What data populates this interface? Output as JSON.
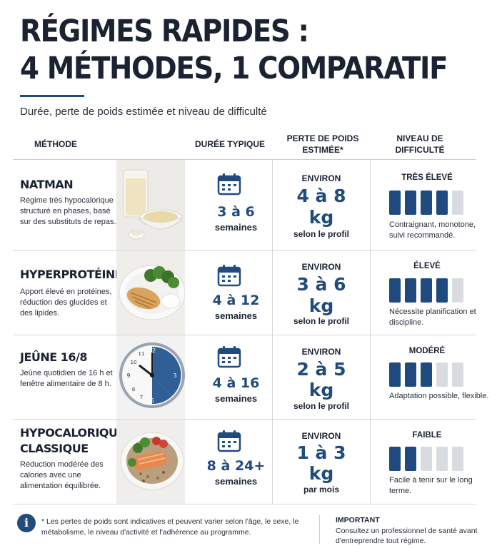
{
  "title": {
    "line1": "RÉGIMES RAPIDES :",
    "line2": "4 MÉTHODES, 1 COMPARATIF"
  },
  "subtitle": "Durée, perte de poids estimée et niveau de difficulté",
  "headers": {
    "methode": "MÉTHODE",
    "duree": "DURÉE TYPIQUE",
    "perte": "PERTE DE POIDS ESTIMÉE*",
    "niveau": "NIVEAU DE DIFFICULTÉ"
  },
  "rows": [
    {
      "name": "NATMAN",
      "desc": "Régime très hypocalorique structuré en phases, basé sur des substituts de repas.",
      "photo": "shake-and-soup-photo",
      "duration": "3 à 6",
      "duration_unit": "semaines",
      "loss_prefix": "ENVIRON",
      "loss_range": "4 à 8",
      "loss_unit": "kg",
      "loss_suffix": "selon le profil",
      "difficulty_label": "TRÈS ÉLEVÉ",
      "difficulty_level": 4,
      "difficulty_max": 5,
      "difficulty_desc": "Contraignant, monotone, suivi recommandé."
    },
    {
      "name": "HYPERPROTÉINÉ",
      "desc": "Apport élevé en protéines, réduction des glucides et des lipides.",
      "photo": "chicken-broccoli-photo",
      "duration": "4 à 12",
      "duration_unit": "semaines",
      "loss_prefix": "ENVIRON",
      "loss_range": "3 à 6",
      "loss_unit": "kg",
      "loss_suffix": "selon le profil",
      "difficulty_label": "ÉLEVÉ",
      "difficulty_level": 4,
      "difficulty_max": 5,
      "difficulty_desc": "Nécessite planification et discipline."
    },
    {
      "name": "JEÛNE 16/8",
      "desc": "Jeûne quotidien de 16 h et fenêtre alimentaire de 8 h.",
      "photo": "clock-photo",
      "duration": "4 à 16",
      "duration_unit": "semaines",
      "loss_prefix": "ENVIRON",
      "loss_range": "2 à 5",
      "loss_unit": "kg",
      "loss_suffix": "selon le profil",
      "difficulty_label": "MODÉRÉ",
      "difficulty_level": 3,
      "difficulty_max": 5,
      "difficulty_desc": "Adaptation possible, flexible."
    },
    {
      "name": "HYPOCALORIQUE CLASSIQUE",
      "desc": "Réduction modérée des calories avec une alimentation équilibrée.",
      "photo": "salmon-bowl-photo",
      "duration": "8 à 24+",
      "duration_unit": "semaines",
      "loss_prefix": "ENVIRON",
      "loss_range": "1 à 3",
      "loss_unit": "kg",
      "loss_suffix": "par mois",
      "difficulty_label": "FAIBLE",
      "difficulty_level": 2,
      "difficulty_max": 5,
      "difficulty_desc": "Facile à tenir sur le long terme."
    }
  ],
  "footer": {
    "icon": "info-icon",
    "note": "* Les pertes de poids sont indicatives et peuvent varier selon l'âge, le sexe, le métabolisme, le niveau d'activité et l'adhérence au programme.",
    "important_title": "IMPORTANT",
    "important_text": "Consultez un professionnel de santé avant d'entreprendre tout régime."
  },
  "colors": {
    "accent": "#214a7d",
    "bar_on": "#1f4a7e",
    "bar_off": "#d8dbe0"
  }
}
